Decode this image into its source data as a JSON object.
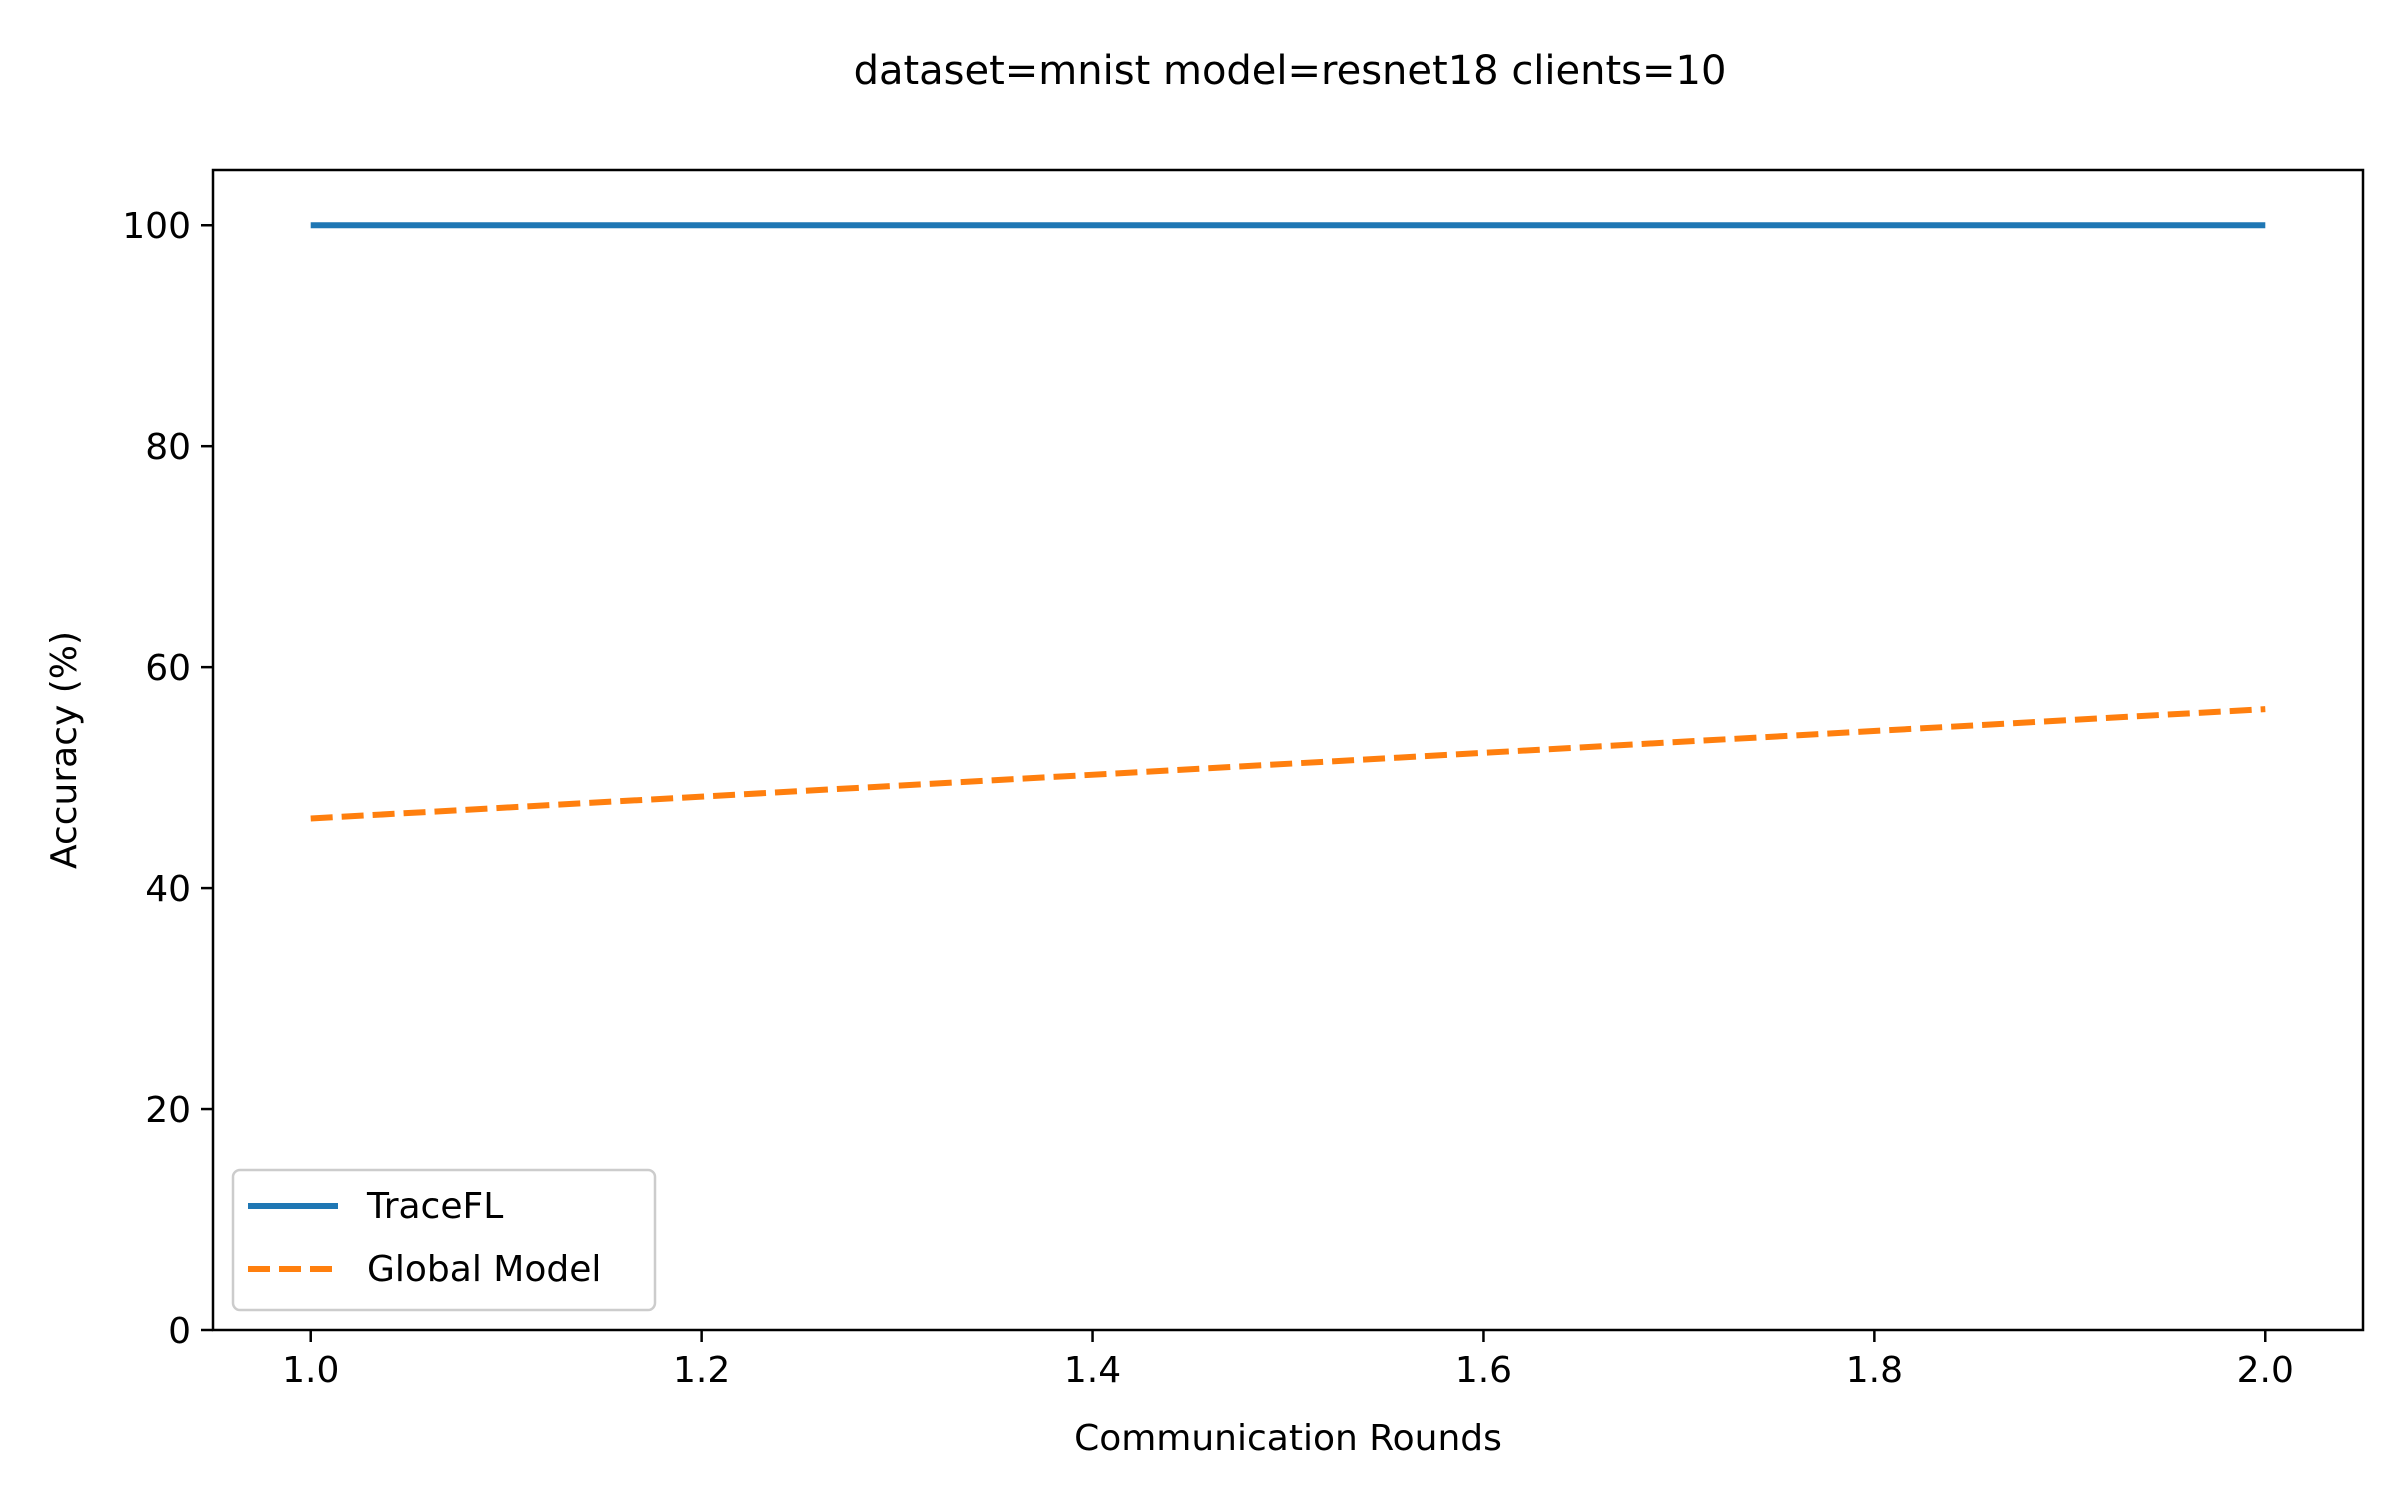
{
  "chart_data": {
    "type": "line",
    "title": "dataset=mnist model=resnet18 clients=10",
    "xlabel": "Communication Rounds",
    "ylabel": "Accuracy (%)",
    "xlim": [
      0.95,
      2.05
    ],
    "ylim": [
      0,
      105
    ],
    "x_ticks": [
      1.0,
      1.2,
      1.4,
      1.6,
      1.8,
      2.0
    ],
    "x_tick_labels": [
      "1.0",
      "1.2",
      "1.4",
      "1.6",
      "1.8",
      "2.0"
    ],
    "y_ticks": [
      0,
      20,
      40,
      60,
      80,
      100
    ],
    "y_tick_labels": [
      "0",
      "20",
      "40",
      "60",
      "80",
      "100"
    ],
    "grid": false,
    "legend_position": "lower-left",
    "series": [
      {
        "name": "TraceFL",
        "x": [
          1.0,
          2.0
        ],
        "y": [
          100,
          100
        ],
        "color": "#1f77b4",
        "line_style": "solid"
      },
      {
        "name": "Global Model",
        "x": [
          1.0,
          2.0
        ],
        "y": [
          46.3,
          56.2
        ],
        "color": "#ff7f0e",
        "line_style": "dashed"
      }
    ]
  }
}
